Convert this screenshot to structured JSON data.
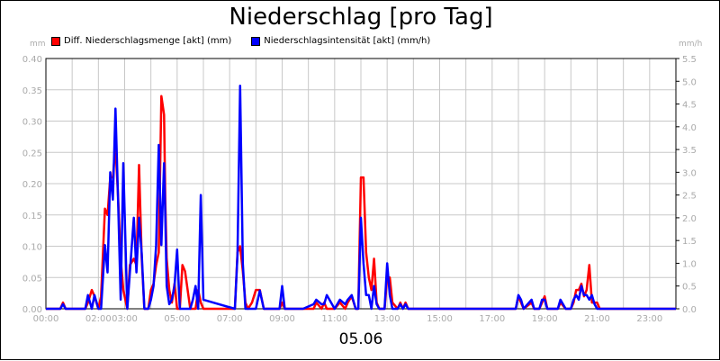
{
  "title": "Niederschlag [pro Tag]",
  "date_label": "05.06",
  "axis_units": {
    "left": "mm",
    "right": "mm/h"
  },
  "chart_data": {
    "type": "line",
    "title": "Niederschlag [pro Tag]",
    "xlabel": "05.06",
    "x_ticks": [
      "00:00",
      "02:00",
      "03:00",
      "05:00",
      "07:00",
      "09:00",
      "11:00",
      "13:00",
      "15:00",
      "17:00",
      "19:00",
      "21:00",
      "23:00"
    ],
    "x_tick_hours": [
      0,
      2,
      3,
      5,
      7,
      9,
      11,
      13,
      15,
      17,
      19,
      21,
      23
    ],
    "xlim": [
      0,
      24
    ],
    "ylim_left": [
      0,
      0.4
    ],
    "ylim_right": [
      0,
      5.5
    ],
    "y_ticks_left": [
      "0.00",
      "0.05",
      "0.10",
      "0.15",
      "0.20",
      "0.25",
      "0.30",
      "0.35",
      "0.40"
    ],
    "y_ticks_right": [
      "0.0",
      "0.5",
      "1.0",
      "1.5",
      "2.0",
      "2.5",
      "3.0",
      "3.5",
      "4.0",
      "4.5",
      "5.0",
      "5.5"
    ],
    "grid": true,
    "legend_position": "top-left",
    "series": [
      {
        "name": "Diff. Niederschlagsmenge [akt] (mm)",
        "axis": "left",
        "color": "#ff0000",
        "x": [
          0.0,
          0.55,
          0.65,
          0.75,
          0.9,
          1.5,
          1.6,
          1.75,
          1.85,
          2.0,
          2.1,
          2.25,
          2.35,
          2.45,
          2.55,
          2.65,
          2.75,
          2.85,
          2.95,
          3.1,
          3.2,
          3.35,
          3.45,
          3.55,
          3.65,
          3.75,
          3.9,
          4.0,
          4.1,
          4.2,
          4.3,
          4.4,
          4.5,
          4.55,
          4.6,
          4.7,
          4.8,
          4.9,
          5.0,
          5.1,
          5.2,
          5.3,
          5.5,
          5.6,
          5.7,
          5.8,
          5.9,
          6.0,
          7.2,
          7.3,
          7.4,
          7.5,
          7.6,
          7.7,
          7.85,
          8.0,
          8.15,
          8.3,
          8.9,
          9.0,
          9.1,
          9.5,
          9.8,
          10.2,
          10.3,
          10.5,
          10.6,
          10.7,
          11.0,
          11.2,
          11.4,
          11.5,
          11.65,
          11.8,
          11.9,
          12.0,
          12.1,
          12.2,
          12.3,
          12.4,
          12.5,
          12.6,
          12.7,
          12.8,
          12.9,
          13.0,
          13.1,
          13.2,
          13.4,
          13.5,
          13.6,
          13.7,
          13.8,
          17.9,
          18.0,
          18.1,
          18.2,
          18.5,
          18.6,
          18.8,
          18.9,
          19.0,
          19.1,
          19.5,
          19.6,
          19.8,
          20.0,
          20.1,
          20.2,
          20.3,
          20.4,
          20.5,
          20.6,
          20.7,
          20.8,
          20.9,
          21.0,
          21.1,
          21.3,
          24.0
        ],
        "values": [
          0.0,
          0.0,
          0.01,
          0.0,
          0.0,
          0.0,
          0.01,
          0.03,
          0.02,
          0.0,
          0.02,
          0.16,
          0.15,
          0.21,
          0.21,
          0.26,
          0.18,
          0.08,
          0.03,
          0.0,
          0.07,
          0.08,
          0.07,
          0.23,
          0.08,
          0.0,
          0.0,
          0.03,
          0.04,
          0.07,
          0.09,
          0.34,
          0.31,
          0.17,
          0.08,
          0.03,
          0.01,
          0.04,
          0.0,
          0.0,
          0.07,
          0.06,
          0.0,
          0.0,
          0.0,
          0.03,
          0.01,
          0.0,
          0.0,
          0.09,
          0.1,
          0.06,
          0.01,
          0.0,
          0.01,
          0.03,
          0.03,
          0.0,
          0.0,
          0.01,
          0.0,
          0.0,
          0.0,
          0.0,
          0.01,
          0.0,
          0.01,
          0.0,
          0.0,
          0.01,
          0.0,
          0.01,
          0.02,
          0.0,
          0.0,
          0.21,
          0.21,
          0.09,
          0.05,
          0.03,
          0.08,
          0.01,
          0.0,
          0.0,
          0.0,
          0.05,
          0.05,
          0.01,
          0.0,
          0.01,
          0.0,
          0.01,
          0.0,
          0.0,
          0.02,
          0.01,
          0.0,
          0.01,
          0.0,
          0.0,
          0.01,
          0.02,
          0.0,
          0.0,
          0.01,
          0.0,
          0.0,
          0.01,
          0.03,
          0.03,
          0.04,
          0.02,
          0.03,
          0.07,
          0.01,
          0.01,
          0.01,
          0.0,
          0.0,
          0.0
        ]
      },
      {
        "name": "Niederschlagsintensität [akt] (mm/h)",
        "axis": "right",
        "color": "#0000ff",
        "x": [
          0.0,
          0.55,
          0.65,
          0.75,
          0.9,
          1.5,
          1.6,
          1.75,
          1.85,
          2.0,
          2.1,
          2.25,
          2.35,
          2.45,
          2.55,
          2.65,
          2.75,
          2.85,
          2.95,
          3.1,
          3.2,
          3.35,
          3.45,
          3.55,
          3.65,
          3.75,
          3.9,
          4.0,
          4.1,
          4.2,
          4.3,
          4.4,
          4.5,
          4.55,
          4.6,
          4.7,
          4.8,
          4.9,
          5.0,
          5.1,
          5.2,
          5.3,
          5.5,
          5.6,
          5.7,
          5.8,
          5.9,
          6.0,
          7.2,
          7.3,
          7.4,
          7.5,
          7.6,
          7.7,
          7.85,
          8.0,
          8.15,
          8.3,
          8.9,
          9.0,
          9.1,
          9.5,
          9.8,
          10.2,
          10.3,
          10.5,
          10.6,
          10.7,
          11.0,
          11.2,
          11.4,
          11.5,
          11.65,
          11.8,
          11.9,
          12.0,
          12.1,
          12.2,
          12.3,
          12.4,
          12.5,
          12.6,
          12.7,
          12.8,
          12.9,
          13.0,
          13.1,
          13.2,
          13.4,
          13.5,
          13.6,
          13.7,
          13.8,
          17.9,
          18.0,
          18.1,
          18.2,
          18.5,
          18.6,
          18.8,
          18.9,
          19.0,
          19.1,
          19.5,
          19.6,
          19.8,
          20.0,
          20.1,
          20.2,
          20.3,
          20.4,
          20.5,
          20.6,
          20.7,
          20.8,
          20.9,
          21.0,
          21.1,
          21.3,
          24.0
        ],
        "values": [
          0.0,
          0.0,
          0.1,
          0.0,
          0.0,
          0.0,
          0.3,
          0.0,
          0.3,
          0.0,
          0.0,
          1.4,
          0.8,
          3.0,
          2.4,
          4.4,
          2.4,
          0.2,
          3.2,
          0.0,
          0.8,
          2.0,
          0.8,
          2.0,
          1.2,
          0.0,
          0.0,
          0.2,
          0.5,
          1.4,
          3.6,
          1.4,
          3.2,
          2.0,
          0.5,
          0.1,
          0.2,
          0.5,
          1.3,
          0.0,
          0.0,
          0.0,
          0.0,
          0.2,
          0.5,
          0.0,
          2.5,
          0.2,
          0.0,
          1.2,
          4.9,
          1.0,
          0.0,
          0.0,
          0.0,
          0.0,
          0.4,
          0.0,
          0.0,
          0.5,
          0.0,
          0.0,
          0.0,
          0.1,
          0.2,
          0.1,
          0.1,
          0.3,
          0.0,
          0.2,
          0.1,
          0.2,
          0.3,
          0.0,
          0.0,
          2.0,
          1.0,
          0.3,
          0.3,
          0.0,
          0.5,
          0.1,
          0.0,
          0.0,
          0.0,
          1.0,
          0.3,
          0.0,
          0.0,
          0.1,
          0.0,
          0.1,
          0.0,
          0.0,
          0.3,
          0.2,
          0.0,
          0.2,
          0.0,
          0.0,
          0.2,
          0.2,
          0.0,
          0.0,
          0.2,
          0.0,
          0.0,
          0.2,
          0.3,
          0.2,
          0.5,
          0.3,
          0.3,
          0.2,
          0.3,
          0.1,
          0.0,
          0.0,
          0.0,
          0.0
        ]
      }
    ]
  }
}
